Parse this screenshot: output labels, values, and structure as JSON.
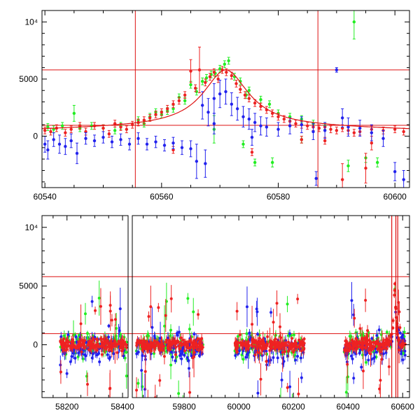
{
  "chart_data": [
    {
      "type": "scatter",
      "panel": "top",
      "xlim": [
        60539.5,
        60602.5
      ],
      "ylim": [
        -4500,
        11000
      ],
      "xticks": [
        60540,
        60560,
        60580,
        60600
      ],
      "xtick_labels": [
        "60540",
        "60560",
        "60580",
        "60600"
      ],
      "yticks": [
        0,
        5000,
        10000
      ],
      "ytick_labels": [
        "0",
        "5000",
        "10⁴"
      ],
      "grid": false,
      "hlines": [
        5800,
        950
      ],
      "vlines": [
        60555.5,
        60586.8
      ],
      "model_peak_x": 60571,
      "colors": {
        "green": "#22ee22",
        "red": "#ee2222",
        "blue": "#2222ee",
        "lines": "#dd1111"
      },
      "series": [
        {
          "color": "green",
          "points": [
            [
              60540.5,
              800,
              300
            ],
            [
              60541.5,
              600,
              300
            ],
            [
              60543,
              900,
              300
            ],
            [
              60545,
              2000,
              700
            ],
            [
              60546,
              700,
              300
            ],
            [
              60548,
              900,
              300
            ],
            [
              60550,
              700,
              300
            ],
            [
              60552,
              500,
              300
            ],
            [
              60553,
              900,
              300
            ],
            [
              60556,
              1400,
              300
            ],
            [
              60557,
              1100,
              300
            ],
            [
              60558,
              1700,
              300
            ],
            [
              60559,
              2100,
              300
            ],
            [
              60560,
              1900,
              300
            ],
            [
              60561,
              2200,
              300
            ],
            [
              60562,
              2400,
              300
            ],
            [
              60563,
              3400,
              300
            ],
            [
              60564,
              3100,
              300
            ],
            [
              60565,
              4500,
              300
            ],
            [
              60566,
              3900,
              300
            ],
            [
              60567,
              4800,
              300
            ],
            [
              60567.7,
              5100,
              300
            ],
            [
              60568.5,
              5400,
              300
            ],
            [
              60569.2,
              5500,
              300
            ],
            [
              60570,
              5900,
              300
            ],
            [
              60570.8,
              6300,
              300
            ],
            [
              60571.5,
              6600,
              300
            ],
            [
              60572.5,
              5200,
              300
            ],
            [
              60573.5,
              4800,
              300
            ],
            [
              60574.5,
              3600,
              300
            ],
            [
              60575,
              4000,
              300
            ],
            [
              60577,
              3200,
              300
            ],
            [
              60578.5,
              2800,
              300
            ],
            [
              60580,
              2000,
              300
            ],
            [
              60582,
              1700,
              300
            ],
            [
              60584,
              1500,
              300
            ],
            [
              60586,
              1100,
              300
            ],
            [
              60588,
              900,
              300
            ],
            [
              60569,
              600,
              1200
            ],
            [
              60574,
              -700,
              300
            ],
            [
              60576,
              -2300,
              300
            ],
            [
              60579,
              -2300,
              400
            ],
            [
              60584,
              -300,
              300
            ],
            [
              60592,
              -2600,
              500
            ],
            [
              60593,
              10000,
              1500
            ],
            [
              60597,
              -2300,
              400
            ],
            [
              60595,
              -1900,
              400
            ]
          ]
        },
        {
          "color": "red",
          "points": [
            [
              60540,
              500,
              300
            ],
            [
              60541,
              400,
              300
            ],
            [
              60542,
              700,
              300
            ],
            [
              60543.5,
              300,
              300
            ],
            [
              60544.5,
              600,
              300
            ],
            [
              60546,
              900,
              300
            ],
            [
              60547,
              400,
              300
            ],
            [
              60548.5,
              900,
              300
            ],
            [
              60550,
              700,
              300
            ],
            [
              60551,
              200,
              300
            ],
            [
              60552,
              1100,
              300
            ],
            [
              60553,
              800,
              300
            ],
            [
              60554,
              600,
              300
            ],
            [
              60555,
              1000,
              300
            ],
            [
              60556,
              1200,
              300
            ],
            [
              60557,
              1400,
              300
            ],
            [
              60558,
              1600,
              300
            ],
            [
              60559,
              1900,
              300
            ],
            [
              60560,
              2100,
              300
            ],
            [
              60561,
              2400,
              300
            ],
            [
              60562,
              2800,
              300
            ],
            [
              60563,
              3100,
              300
            ],
            [
              60564,
              3600,
              300
            ],
            [
              60565,
              5700,
              1000
            ],
            [
              60565.8,
              4200,
              300
            ],
            [
              60566.5,
              5800,
              2000
            ],
            [
              60567.5,
              4700,
              300
            ],
            [
              60568.3,
              5200,
              300
            ],
            [
              60569,
              5600,
              300
            ],
            [
              60569.7,
              5000,
              300
            ],
            [
              60570.4,
              5800,
              300
            ],
            [
              60571.1,
              5600,
              300
            ],
            [
              60572,
              5300,
              300
            ],
            [
              60572.8,
              4600,
              300
            ],
            [
              60573.5,
              4100,
              300
            ],
            [
              60574.3,
              3600,
              300
            ],
            [
              60575,
              3300,
              300
            ],
            [
              60576,
              2900,
              300
            ],
            [
              60577,
              2600,
              300
            ],
            [
              60578,
              2300,
              300
            ],
            [
              60579,
              2000,
              300
            ],
            [
              60580,
              1700,
              300
            ],
            [
              60581,
              1500,
              300
            ],
            [
              60582,
              1300,
              300
            ],
            [
              60583,
              1100,
              300
            ],
            [
              60584,
              1000,
              300
            ],
            [
              60585,
              900,
              300
            ],
            [
              60586,
              800,
              300
            ],
            [
              60587,
              700,
              300
            ],
            [
              60588,
              800,
              300
            ],
            [
              60589,
              600,
              300
            ],
            [
              60590,
              500,
              300
            ],
            [
              60591,
              700,
              300
            ],
            [
              60592,
              500,
              300
            ],
            [
              60593,
              300,
              300
            ],
            [
              60594,
              400,
              300
            ],
            [
              60596,
              600,
              300
            ],
            [
              60598,
              500,
              300
            ],
            [
              60600,
              600,
              300
            ],
            [
              60601.5,
              400,
              300
            ],
            [
              60562,
              -1200,
              300
            ],
            [
              60575.5,
              -1400,
              300
            ],
            [
              60584,
              -300,
              300
            ],
            [
              60588,
              -400,
              300
            ],
            [
              60591,
              -3800,
              1400
            ],
            [
              60595,
              -2800,
              1300
            ],
            [
              60596,
              -600,
              600
            ]
          ]
        },
        {
          "color": "blue",
          "points": [
            [
              60540,
              -700,
              700
            ],
            [
              60540.5,
              -1200,
              800
            ],
            [
              60541.5,
              -300,
              600
            ],
            [
              60542.5,
              -700,
              800
            ],
            [
              60543.5,
              -900,
              700
            ],
            [
              60544.5,
              -400,
              600
            ],
            [
              60545.5,
              -1500,
              900
            ],
            [
              60547,
              -200,
              500
            ],
            [
              60548.5,
              -400,
              500
            ],
            [
              60550,
              -100,
              500
            ],
            [
              60551.5,
              -500,
              500
            ],
            [
              60553,
              -300,
              500
            ],
            [
              60554.5,
              -700,
              500
            ],
            [
              60556,
              -200,
              500
            ],
            [
              60557.5,
              -700,
              500
            ],
            [
              60559,
              -500,
              500
            ],
            [
              60560.5,
              -800,
              500
            ],
            [
              60562,
              -600,
              500
            ],
            [
              60563.5,
              -1000,
              600
            ],
            [
              60565,
              -1100,
              700
            ],
            [
              60566,
              -2200,
              1500
            ],
            [
              60567,
              2700,
              1200
            ],
            [
              60568,
              2100,
              1200
            ],
            [
              60569,
              3300,
              1300
            ],
            [
              60570,
              3700,
              1200
            ],
            [
              60571,
              3900,
              1100
            ],
            [
              60572,
              2800,
              1000
            ],
            [
              60573,
              2400,
              1000
            ],
            [
              60574,
              1700,
              900
            ],
            [
              60575,
              1500,
              900
            ],
            [
              60576,
              1200,
              800
            ],
            [
              60577,
              900,
              800
            ],
            [
              60578,
              800,
              800
            ],
            [
              60580,
              600,
              600
            ],
            [
              60582,
              900,
              700
            ],
            [
              60584,
              1000,
              700
            ],
            [
              60586,
              400,
              700
            ],
            [
              60588,
              500,
              700
            ],
            [
              60590,
              5800,
              200
            ],
            [
              60591,
              1600,
              800
            ],
            [
              60592,
              800,
              800
            ],
            [
              60594,
              700,
              700
            ],
            [
              60596,
              300,
              700
            ],
            [
              60598,
              -200,
              700
            ],
            [
              60600,
              -3100,
              800
            ],
            [
              60601.5,
              -3800,
              800
            ],
            [
              60567.5,
              -2400,
              1200
            ],
            [
              60569,
              1100,
              900
            ],
            [
              60575.5,
              -100,
              700
            ],
            [
              60586.5,
              -3700,
              600
            ]
          ]
        }
      ]
    },
    {
      "type": "scatter",
      "panel": "bottom",
      "xlim": [
        58110,
        60625
      ],
      "ylim": [
        -4500,
        11000
      ],
      "xticks": [
        58200,
        58400,
        59800,
        60000,
        60200,
        60400,
        60600
      ],
      "xtick_labels": [
        "58200",
        "58400",
        "59800",
        "60000",
        "60200",
        "60400",
        "60600"
      ],
      "yticks": [
        0,
        5000,
        10000
      ],
      "ytick_labels": [
        "0",
        "5000",
        "10⁴"
      ],
      "grid": false,
      "hlines": [
        5800,
        950
      ],
      "broken_axis": true,
      "season_ranges": [
        [
          58175,
          58415
        ],
        [
          59625,
          59870
        ],
        [
          59985,
          60240
        ],
        [
          60385,
          60610
        ]
      ],
      "peak_x": 60571,
      "colors": {
        "green": "#22ee22",
        "red": "#ee2222",
        "blue": "#2222ee",
        "lines": "#dd1111"
      }
    }
  ]
}
